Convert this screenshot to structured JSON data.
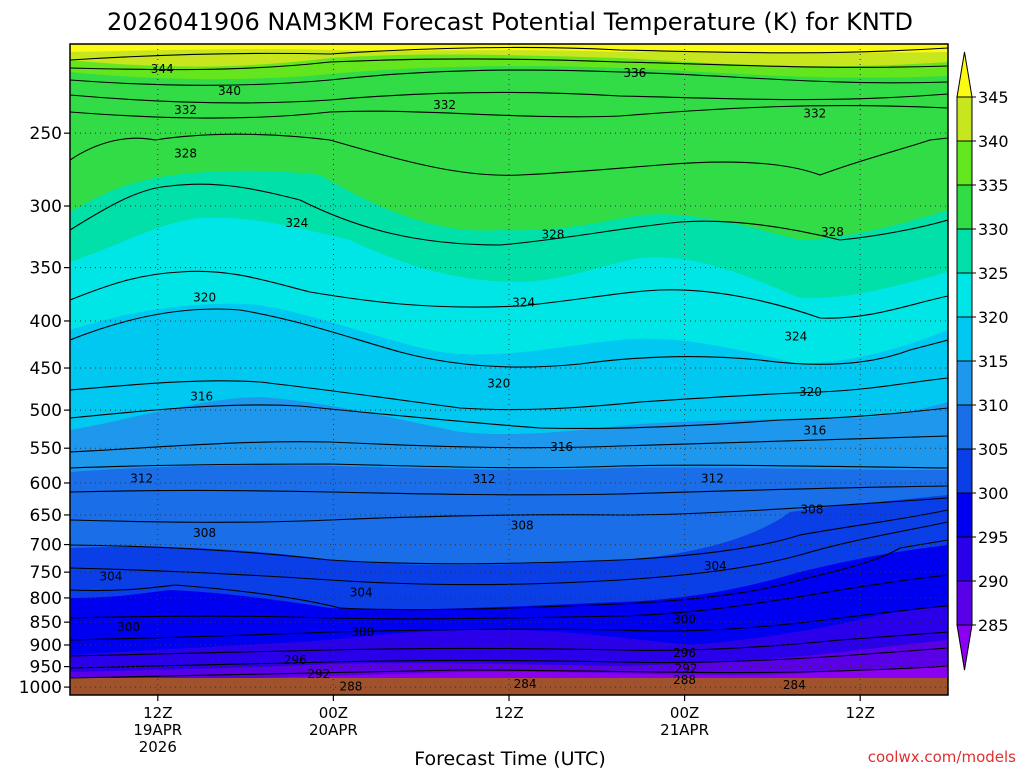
{
  "chart_data": {
    "type": "heatmap",
    "title": "2026041906 NAM3KM Forecast Potential Temperature (K) for KNTD",
    "xlabel": "Forecast Time (UTC)",
    "ylabel": "",
    "watermark": "coolwx.com/models",
    "x_range_hours": [
      0,
      60
    ],
    "x_ticks": [
      {
        "hour": 6,
        "lines": [
          "12Z",
          "19APR",
          "2026"
        ]
      },
      {
        "hour": 18,
        "lines": [
          "00Z",
          "20APR"
        ]
      },
      {
        "hour": 30,
        "lines": [
          "12Z"
        ]
      },
      {
        "hour": 42,
        "lines": [
          "00Z",
          "21APR"
        ]
      },
      {
        "hour": 54,
        "lines": [
          "12Z"
        ]
      }
    ],
    "y_range_hpa": [
      1020,
      200
    ],
    "y_ticks": [
      1000,
      950,
      900,
      850,
      800,
      750,
      700,
      650,
      600,
      550,
      500,
      450,
      400,
      350,
      300,
      250
    ],
    "colorbar": {
      "levels": [
        285,
        290,
        295,
        300,
        305,
        310,
        315,
        320,
        325,
        330,
        335,
        340,
        345
      ],
      "colors": [
        "#8a00f0",
        "#5a00e6",
        "#2a00ea",
        "#0000f0",
        "#0a3ee6",
        "#1a6ee8",
        "#1e98ec",
        "#00c8f0",
        "#00e6e6",
        "#00e0a8",
        "#32dc46",
        "#64e61e",
        "#c8e61e",
        "#fafa14"
      ]
    },
    "contour_labels": [
      {
        "value": "344",
        "hour": 6.3,
        "hpa": 213
      },
      {
        "value": "340",
        "hour": 10.9,
        "hpa": 225
      },
      {
        "value": "336",
        "hour": 38.6,
        "hpa": 215
      },
      {
        "value": "332",
        "hour": 7.9,
        "hpa": 236
      },
      {
        "value": "332",
        "hour": 25.6,
        "hpa": 233
      },
      {
        "value": "332",
        "hour": 50.9,
        "hpa": 238
      },
      {
        "value": "328",
        "hour": 7.9,
        "hpa": 263
      },
      {
        "value": "328",
        "hour": 33.0,
        "hpa": 322
      },
      {
        "value": "328",
        "hour": 52.1,
        "hpa": 320
      },
      {
        "value": "324",
        "hour": 15.5,
        "hpa": 313
      },
      {
        "value": "324",
        "hour": 31.0,
        "hpa": 382
      },
      {
        "value": "324",
        "hour": 49.6,
        "hpa": 416
      },
      {
        "value": "320",
        "hour": 9.2,
        "hpa": 377
      },
      {
        "value": "320",
        "hour": 29.3,
        "hpa": 468
      },
      {
        "value": "320",
        "hour": 50.6,
        "hpa": 478
      },
      {
        "value": "316",
        "hour": 9.0,
        "hpa": 483
      },
      {
        "value": "316",
        "hour": 33.6,
        "hpa": 548
      },
      {
        "value": "316",
        "hour": 50.9,
        "hpa": 526
      },
      {
        "value": "312",
        "hour": 4.9,
        "hpa": 593
      },
      {
        "value": "312",
        "hour": 28.3,
        "hpa": 594
      },
      {
        "value": "312",
        "hour": 43.9,
        "hpa": 593
      },
      {
        "value": "308",
        "hour": 9.2,
        "hpa": 680
      },
      {
        "value": "308",
        "hour": 30.9,
        "hpa": 667
      },
      {
        "value": "308",
        "hour": 50.7,
        "hpa": 641
      },
      {
        "value": "304",
        "hour": 2.8,
        "hpa": 758
      },
      {
        "value": "304",
        "hour": 19.9,
        "hpa": 789
      },
      {
        "value": "304",
        "hour": 44.1,
        "hpa": 739
      },
      {
        "value": "300",
        "hour": 4.0,
        "hpa": 860
      },
      {
        "value": "300",
        "hour": 20.0,
        "hpa": 871
      },
      {
        "value": "300",
        "hour": 42.0,
        "hpa": 844
      },
      {
        "value": "296",
        "hour": 15.4,
        "hpa": 935
      },
      {
        "value": "296",
        "hour": 42.0,
        "hpa": 918
      },
      {
        "value": "292",
        "hour": 17.0,
        "hpa": 968
      },
      {
        "value": "292",
        "hour": 42.1,
        "hpa": 955
      },
      {
        "value": "288",
        "hour": 19.2,
        "hpa": 998
      },
      {
        "value": "288",
        "hour": 42.0,
        "hpa": 983
      },
      {
        "value": "284",
        "hour": 31.1,
        "hpa": 992
      },
      {
        "value": "284",
        "hour": 49.5,
        "hpa": 995
      }
    ]
  }
}
